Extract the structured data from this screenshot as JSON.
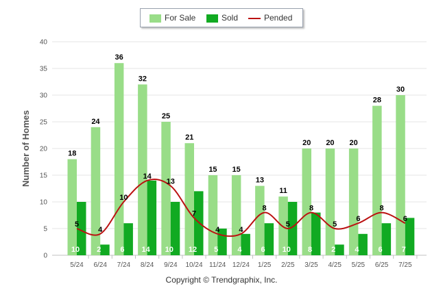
{
  "chart_data": {
    "type": "bar",
    "ylabel": "Number of Homes",
    "xlabel": "",
    "ylim": [
      0,
      40
    ],
    "yticks": [
      0,
      5,
      10,
      15,
      20,
      25,
      30,
      35,
      40
    ],
    "grid": true,
    "legend_placement": "top-center",
    "categories": [
      "5/24",
      "6/24",
      "7/24",
      "8/24",
      "9/24",
      "10/24",
      "11/24",
      "12/24",
      "1/25",
      "2/25",
      "3/25",
      "4/25",
      "5/25",
      "6/25",
      "7/25"
    ],
    "series": [
      {
        "name": "For Sale",
        "kind": "bar",
        "color": "#99dd88",
        "values": [
          18,
          24,
          36,
          32,
          25,
          21,
          15,
          15,
          13,
          11,
          20,
          20,
          20,
          28,
          30
        ]
      },
      {
        "name": "Sold",
        "kind": "bar",
        "color": "#11aa22",
        "values": [
          10,
          2,
          6,
          14,
          10,
          12,
          5,
          4,
          6,
          10,
          8,
          2,
          4,
          6,
          7
        ]
      },
      {
        "name": "Pended",
        "kind": "line",
        "color": "#bb1111",
        "values": [
          5,
          4,
          10,
          14,
          13,
          7,
          4,
          4,
          8,
          5,
          8,
          5,
          6,
          8,
          6
        ]
      }
    ]
  },
  "footer": {
    "copyright": "Copyright © Trendgraphix, Inc."
  }
}
